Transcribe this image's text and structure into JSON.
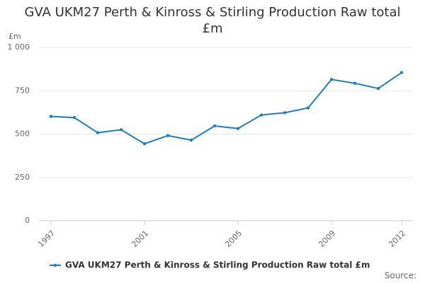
{
  "chart_data": {
    "type": "line",
    "title": "GVA UKM27 Perth & Kinross & Stirling Production Raw total £m",
    "y_label": "£m",
    "source": "Source:",
    "x": [
      1997,
      1998,
      1999,
      2000,
      2001,
      2002,
      2003,
      2004,
      2005,
      2006,
      2007,
      2008,
      2009,
      2010,
      2011,
      2012
    ],
    "series": [
      {
        "name": "GVA UKM27 Perth & Kinross & Stirling Production Raw total £m",
        "color": "#1a7fc1",
        "values": [
          602,
          595,
          508,
          525,
          444,
          491,
          465,
          547,
          532,
          610,
          623,
          651,
          815,
          793,
          763,
          855
        ]
      }
    ],
    "xlim": [
      1997,
      2012
    ],
    "xticks": [
      1997,
      2001,
      2005,
      2009,
      2012
    ],
    "ylim": [
      0,
      1000
    ],
    "yticks": [
      0,
      250,
      500,
      750,
      {
        "value": 1000,
        "label": "1 000"
      }
    ],
    "grid": true
  }
}
